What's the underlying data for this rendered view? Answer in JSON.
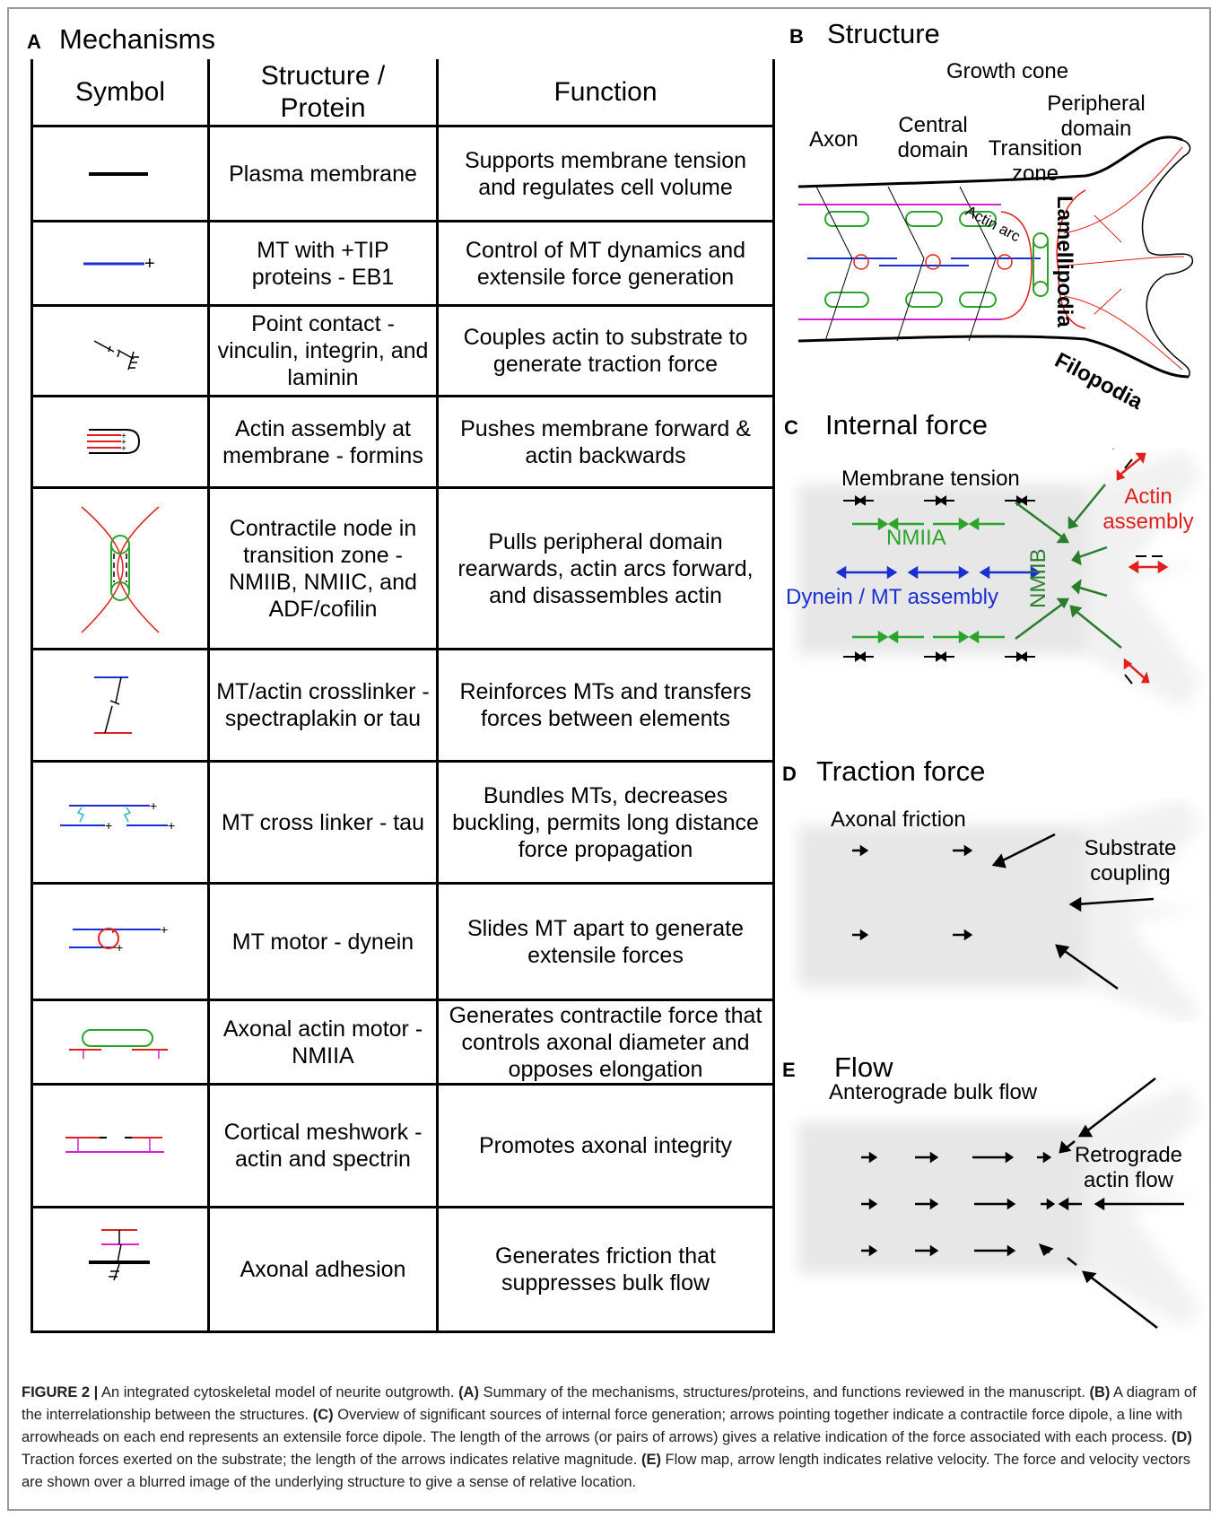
{
  "panel_a": {
    "letter": "A",
    "title": "Mechanisms",
    "headers": {
      "symbol": "Symbol",
      "structure": "Structure / Protein",
      "function": "Function"
    },
    "rows": [
      {
        "structure": "Plasma membrane",
        "function": "Supports membrane tension and regulates cell volume"
      },
      {
        "structure": "MT with +TIP proteins - EB1",
        "function": "Control of MT dynamics and extensile force generation"
      },
      {
        "structure": "Point contact - vinculin, integrin, and laminin",
        "function": "Couples actin to substrate to generate traction force"
      },
      {
        "structure": "Actin assembly at membrane - formins",
        "function": "Pushes membrane forward & actin backwards"
      },
      {
        "structure": "Contractile node in transition zone - NMIIB, NMIIC, and ADF/cofilin",
        "function": "Pulls peripheral domain rearwards, actin arcs forward, and disassembles actin"
      },
      {
        "structure": "MT/actin crosslinker - spectraplakin or tau",
        "function": "Reinforces MTs and transfers forces between elements"
      },
      {
        "structure": "MT cross linker - tau",
        "function": "Bundles MTs, decreases buckling, permits long distance force propagation"
      },
      {
        "structure": "MT motor - dynein",
        "function": "Slides MT apart to generate extensile forces"
      },
      {
        "structure": "Axonal actin motor - NMIIA",
        "function": "Generates contractile force that controls axonal diameter and opposes elongation"
      },
      {
        "structure": "Cortical meshwork - actin and spectrin",
        "function": "Promotes axonal integrity"
      },
      {
        "structure": "Axonal adhesion",
        "function": "Generates friction that suppresses bulk flow"
      }
    ]
  },
  "panel_b": {
    "letter": "B",
    "title": "Structure",
    "labels": {
      "growth_cone": "Growth cone",
      "axon": "Axon",
      "central_domain": "Central domain",
      "peripheral_domain": "Peripheral domain",
      "transition_zone": "Transition zone",
      "actin_arc": "Actin arc",
      "lamellipodia": "Lamellipodia",
      "filopodia": "Filopodia"
    }
  },
  "panel_c": {
    "letter": "C",
    "title": "Internal force",
    "labels": {
      "membrane_tension": "Membrane tension",
      "actin_assembly": "Actin assembly",
      "nmiia": "NMIIA",
      "nmiib": "NMIIB",
      "dynein": "Dynein / MT assembly"
    }
  },
  "panel_d": {
    "letter": "D",
    "title": "Traction force",
    "labels": {
      "axonal_friction": "Axonal friction",
      "substrate_coupling": "Substrate coupling"
    }
  },
  "panel_e": {
    "letter": "E",
    "title": "Flow",
    "labels": {
      "anterograde": "Anterograde bulk flow",
      "retrograde": "Retrograde actin flow"
    }
  },
  "caption": {
    "figure_label": "FIGURE 2 |",
    "title": "An integrated cytoskeletal model of neurite outgrowth.",
    "a_label": "(A)",
    "a_text": "Summary of the mechanisms, structures/proteins, and functions reviewed in the manuscript.",
    "b_label": "(B)",
    "b_text": "A diagram of the interrelationship between the structures.",
    "c_label": "(C)",
    "c_text": "Overview of significant sources of internal force generation; arrows pointing together indicate a contractile force dipole, a line with arrowheads on each end represents an extensile force dipole. The length of the arrows (or pairs of arrows) gives a relative indication of the force associated with each process.",
    "d_label": "(D)",
    "d_text": "Traction forces exerted on the substrate; the length of the arrows indicates relative magnitude.",
    "e_label": "(E)",
    "e_text": "Flow map, arrow length indicates relative velocity. The force and velocity vectors are shown over a blurred image of the underlying structure to give a sense of relative location."
  },
  "colors": {
    "mt": "#1a2fd0",
    "actin": "#e0201c",
    "myosin": "#2aa52a",
    "spectrin": "#d61fd6",
    "tau": "#2bb8c8"
  }
}
